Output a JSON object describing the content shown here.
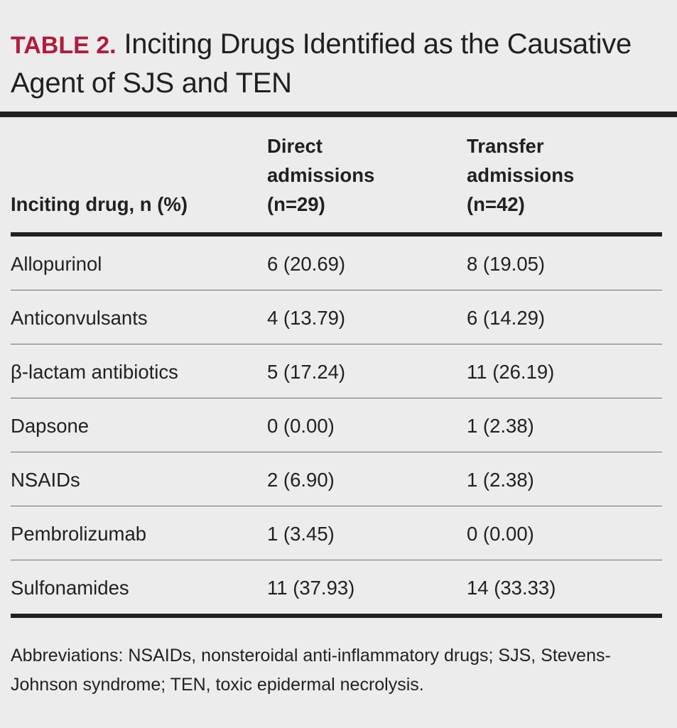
{
  "table": {
    "label": "TABLE 2.",
    "title": "Inciting Drugs Identified as the Causative Agent of SJS and TEN",
    "headers": [
      [
        "Inciting drug, n (%)"
      ],
      [
        "Direct",
        "admissions",
        "(n=29)"
      ],
      [
        "Transfer",
        "admissions",
        "(n=42)"
      ]
    ],
    "rows": [
      [
        "Allopurinol",
        "6 (20.69)",
        "8 (19.05)"
      ],
      [
        "Anticonvulsants",
        "4 (13.79)",
        "6 (14.29)"
      ],
      [
        "β-lactam antibiotics",
        "5 (17.24)",
        "11 (26.19)"
      ],
      [
        "Dapsone",
        "0 (0.00)",
        "1 (2.38)"
      ],
      [
        "NSAIDs",
        "2 (6.90)",
        "1 (2.38)"
      ],
      [
        "Pembrolizumab",
        "1 (3.45)",
        "0 (0.00)"
      ],
      [
        "Sulfonamides",
        "11 (37.93)",
        "14 (33.33)"
      ]
    ],
    "footnote": "Abbreviations: NSAIDs, nonsteroidal anti-inflammatory drugs; SJS, Stevens-Johnson syndrome; TEN, toxic epidermal necrolysis."
  },
  "colors": {
    "label": "#b01c3c",
    "text": "#231f20",
    "background": "#ececec"
  }
}
